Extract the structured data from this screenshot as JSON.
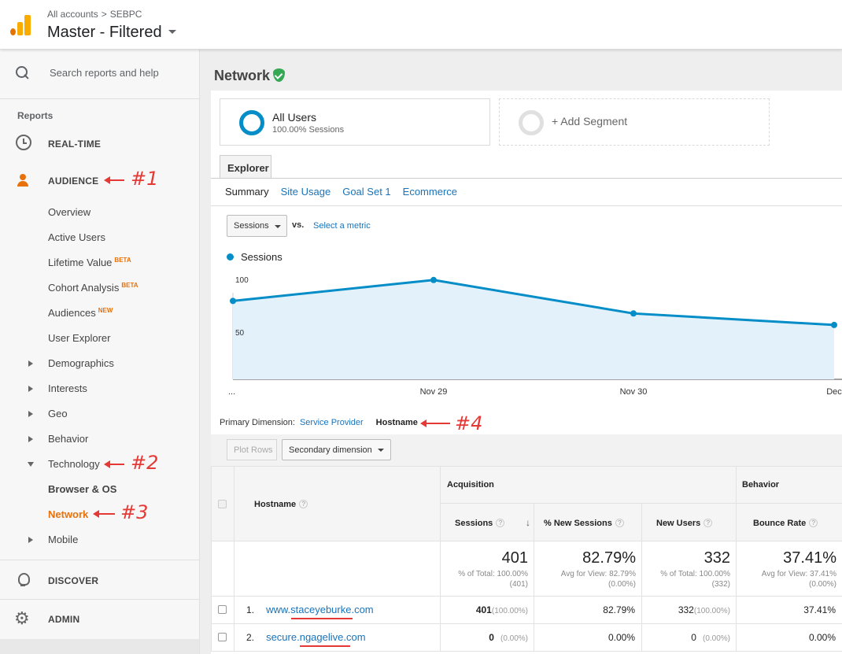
{
  "header": {
    "breadcrumb_root": "All accounts",
    "breadcrumb_sep": ">",
    "breadcrumb_account": "SEBPC",
    "view_name": "Master - Filtered"
  },
  "sidebar": {
    "search_placeholder": "Search reports and help",
    "section_label": "Reports",
    "realtime": "REAL-TIME",
    "audience": "AUDIENCE",
    "audience_items": {
      "overview": "Overview",
      "active_users": "Active Users",
      "lifetime_value": "Lifetime Value",
      "cohort_analysis": "Cohort Analysis",
      "audiences": "Audiences",
      "user_explorer": "User Explorer",
      "demographics": "Demographics",
      "interests": "Interests",
      "geo": "Geo",
      "behavior": "Behavior",
      "technology": "Technology",
      "browser_os": "Browser & OS",
      "network": "Network",
      "mobile": "Mobile"
    },
    "badge_beta": "BETA",
    "badge_new": "NEW",
    "discover": "DISCOVER",
    "admin": "ADMIN"
  },
  "annotations": {
    "a1": "#1",
    "a2": "#2",
    "a3": "#3",
    "a4": "#4"
  },
  "page": {
    "title": "Network"
  },
  "segments": {
    "all_users": "All Users",
    "all_users_pct": "100.00% Sessions",
    "add_segment": "+ Add Segment"
  },
  "explorer": {
    "tab": "Explorer",
    "subtabs": [
      "Summary",
      "Site Usage",
      "Goal Set 1",
      "Ecommerce"
    ],
    "metric_select": "Sessions",
    "vs": "vs.",
    "select_metric": "Select a metric",
    "legend": "Sessions"
  },
  "chart_data": {
    "type": "area",
    "series": [
      {
        "name": "Sessions",
        "values": [
          75,
          95,
          63,
          52
        ]
      }
    ],
    "x": [
      "...",
      "Nov 29",
      "Nov 30",
      "Dec"
    ],
    "ytick_labels": [
      "100",
      "50"
    ],
    "ylim": [
      0,
      100
    ],
    "color": "#058dc7",
    "fill": "#e3f1fa"
  },
  "dimension": {
    "label": "Primary Dimension:",
    "service_provider": "Service Provider",
    "hostname": "Hostname"
  },
  "toolbar": {
    "plot_rows": "Plot Rows",
    "secondary_dimension": "Secondary dimension"
  },
  "table": {
    "hostname_header": "Hostname",
    "acquisition": "Acquisition",
    "behavior": "Behavior",
    "columns": [
      "Sessions",
      "% New Sessions",
      "New Users",
      "Bounce Rate"
    ],
    "totals": {
      "sessions": "401",
      "sessions_sub1": "% of Total: 100.00%",
      "sessions_sub2": "(401)",
      "new_sessions": "82.79%",
      "new_sessions_sub1": "Avg for View: 82.79%",
      "new_sessions_sub2": "(0.00%)",
      "new_users": "332",
      "new_users_sub1": "% of Total: 100.00%",
      "new_users_sub2": "(332)",
      "bounce": "37.41%",
      "bounce_sub1": "Avg for View: 37.41%",
      "bounce_sub2": "(0.00%)"
    },
    "rows": [
      {
        "idx": "1.",
        "host": "www.staceyeburke.com",
        "sessions": "401",
        "sessions_pct": "(100.00%)",
        "new_sessions": "82.79%",
        "new_users": "332",
        "new_users_pct": "(100.00%)",
        "bounce": "37.41%"
      },
      {
        "idx": "2.",
        "host": "secure.ngagelive.com",
        "sessions": "0",
        "sessions_pct": "(0.00%)",
        "new_sessions": "0.00%",
        "new_users": "0",
        "new_users_pct": "(0.00%)",
        "bounce": "0.00%"
      }
    ]
  }
}
